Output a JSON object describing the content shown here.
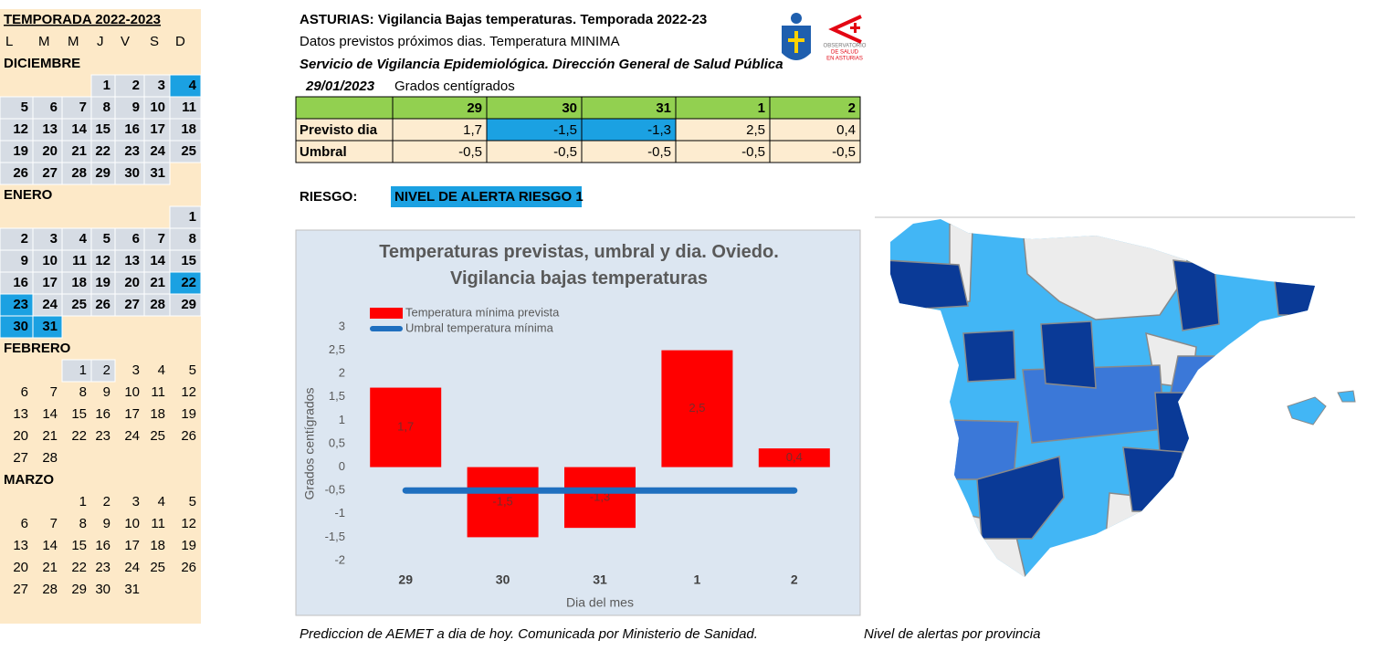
{
  "calendar": {
    "title": "TEMPORADA 2022-2023",
    "weekdays": [
      "L",
      "M",
      "M",
      "J",
      "V",
      "S",
      "D"
    ],
    "months": [
      {
        "name": "DICIEMBRE",
        "bold": true,
        "shaded_through": 31,
        "alert_days": [
          4
        ],
        "weeks": [
          [
            null,
            null,
            null,
            1,
            2,
            3,
            4
          ],
          [
            5,
            6,
            7,
            8,
            9,
            10,
            11
          ],
          [
            12,
            13,
            14,
            15,
            16,
            17,
            18
          ],
          [
            19,
            20,
            21,
            22,
            23,
            24,
            25
          ],
          [
            26,
            27,
            28,
            29,
            30,
            31,
            null
          ]
        ]
      },
      {
        "name": "ENERO",
        "bold": true,
        "shaded_through": 31,
        "alert_days": [
          22,
          23,
          30,
          31
        ],
        "weeks": [
          [
            null,
            null,
            null,
            null,
            null,
            null,
            1
          ],
          [
            2,
            3,
            4,
            5,
            6,
            7,
            8
          ],
          [
            9,
            10,
            11,
            12,
            13,
            14,
            15
          ],
          [
            16,
            17,
            18,
            19,
            20,
            21,
            22
          ],
          [
            23,
            24,
            25,
            26,
            27,
            28,
            29
          ],
          [
            30,
            31,
            null,
            null,
            null,
            null,
            null
          ]
        ]
      },
      {
        "name": "FEBRERO",
        "bold": false,
        "shaded_through": 2,
        "alert_days": [],
        "weeks": [
          [
            null,
            null,
            1,
            2,
            3,
            4,
            5
          ],
          [
            6,
            7,
            8,
            9,
            10,
            11,
            12
          ],
          [
            13,
            14,
            15,
            16,
            17,
            18,
            19
          ],
          [
            20,
            21,
            22,
            23,
            24,
            25,
            26
          ],
          [
            27,
            28,
            null,
            null,
            null,
            null,
            null
          ]
        ]
      },
      {
        "name": "MARZO",
        "bold": false,
        "shaded_through": 0,
        "alert_days": [],
        "weeks": [
          [
            null,
            null,
            1,
            2,
            3,
            4,
            5
          ],
          [
            6,
            7,
            8,
            9,
            10,
            11,
            12
          ],
          [
            13,
            14,
            15,
            16,
            17,
            18,
            19
          ],
          [
            20,
            21,
            22,
            23,
            24,
            25,
            26
          ],
          [
            27,
            28,
            29,
            30,
            31,
            null,
            null
          ]
        ]
      }
    ]
  },
  "header": {
    "title": "ASTURIAS: Vigilancia Bajas temperaturas. Temporada 2022-23",
    "subtitle": "Datos previstos próximos dias.  Temperatura MINIMA",
    "service": "Servicio de Vigilancia Epidemiológica. Dirección General de Salud Pública",
    "date": "29/01/2023",
    "units": "Grados centígrados",
    "logo_text": [
      "OBSERVATORIO",
      "DE SALUD",
      "EN ASTURIAS"
    ]
  },
  "table": {
    "columns": [
      "29",
      "30",
      "31",
      "1",
      "2"
    ],
    "rows": [
      {
        "label": "Previsto dia",
        "cells": [
          "1,7",
          "-1,5",
          "-1,3",
          "2,5",
          "0,4"
        ],
        "alert_cells": [
          1,
          2
        ]
      },
      {
        "label": "Umbral",
        "cells": [
          "-0,5",
          "-0,5",
          "-0,5",
          "-0,5",
          "-0,5"
        ],
        "alert_cells": []
      }
    ]
  },
  "risk": {
    "label": "RIESGO:",
    "level": "NIVEL DE ALERTA RIESGO 1"
  },
  "chart_data": {
    "type": "bar",
    "title": "Temperaturas previstas, umbral y dia. Oviedo. Vigilancia bajas temperaturas",
    "x_label": "Dia del mes",
    "y_label": "Grados centígrados",
    "categories": [
      "29",
      "30",
      "31",
      "1",
      "2"
    ],
    "series": [
      {
        "name": "Temperatura mínima prevista",
        "type": "bar",
        "color": "#ff0000",
        "values": [
          1.7,
          -1.5,
          -1.3,
          2.5,
          0.4
        ],
        "value_labels": [
          "1,7",
          "-1,5",
          "-1,3",
          "2,5",
          "0,4"
        ]
      },
      {
        "name": "Umbral temperatura mínima",
        "type": "line",
        "color": "#1f6fbf",
        "values": [
          -0.5,
          -0.5,
          -0.5,
          -0.5,
          -0.5
        ]
      }
    ],
    "ylim": [
      -2,
      3
    ],
    "yticks": [
      -2,
      {
        "value": -1.5,
        "label": "-1,5"
      },
      -1,
      {
        "value": -0.5,
        "label": "-0,5"
      },
      0,
      {
        "value": 0.5,
        "label": "0,5"
      },
      1,
      {
        "value": 1.5,
        "label": "1,5"
      },
      2,
      {
        "value": 2.5,
        "label": "2,5"
      },
      3
    ],
    "grid": false
  },
  "footer": {
    "left": "Prediccion de AEMET a dia de hoy. Comunicada por Ministerio de Sanidad.",
    "right": "Nivel de alertas por provincia"
  }
}
